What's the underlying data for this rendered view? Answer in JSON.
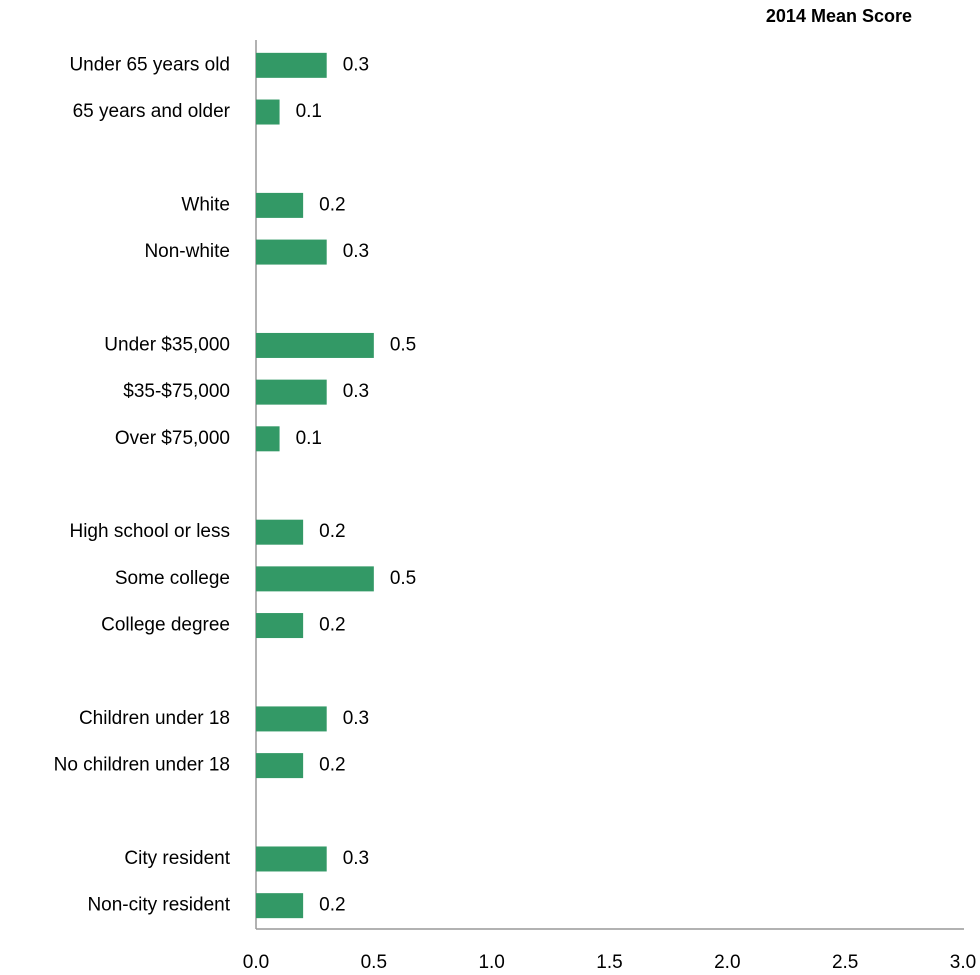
{
  "chart_data": {
    "type": "hbar",
    "title": "2014 Mean Score",
    "categories": [
      "Under 65 years old",
      "65 years and older",
      null,
      "White",
      "Non-white",
      null,
      "Under $35,000",
      "$35-$75,000",
      "Over $75,000",
      null,
      "High school or less",
      "Some college",
      "College degree",
      null,
      "Children under 18",
      "No children under 18",
      null,
      "City resident",
      "Non-city resident"
    ],
    "values": [
      0.3,
      0.1,
      null,
      0.2,
      0.3,
      null,
      0.5,
      0.3,
      0.1,
      null,
      0.2,
      0.5,
      0.2,
      null,
      0.3,
      0.2,
      null,
      0.3,
      0.2
    ],
    "color": "#339966",
    "xlim": [
      0,
      3
    ],
    "xticks": [
      {
        "value": 0,
        "label": "0.0"
      },
      0.5,
      {
        "value": 1,
        "label": "1.0"
      },
      1.5,
      {
        "value": 2,
        "label": "2.0"
      },
      2.5,
      {
        "value": 3,
        "label": "3.0"
      }
    ],
    "grid": false
  }
}
